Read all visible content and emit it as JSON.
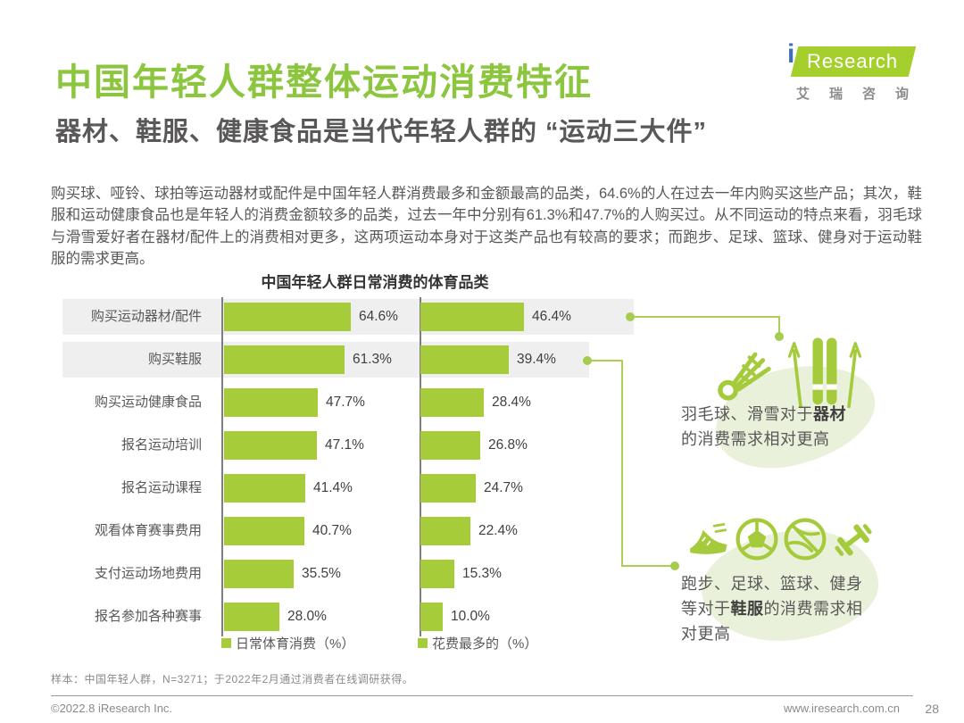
{
  "page": {
    "title": "中国年轻人群整体运动消费特征",
    "subtitle": "器材、鞋服、健康食品是当代年轻人群的 “运动三大件”",
    "body": "购买球、哑铃、球拍等运动器材或配件是中国年轻人群消费最多和金额最高的品类，64.6%的人在过去一年内购买这些产品；其次，鞋服和运动健康食品也是年轻人的消费金额较多的品类，过去一年中分别有61.3%和47.7%的人购买过。从不同运动的特点来看，羽毛球与滑雪爱好者在器材/配件上的消费相对更多，这两项运动本身对于这类产品也有较高的要求；而跑步、足球、篮球、健身对于运动鞋服的需求更高。"
  },
  "logo": {
    "brand_i": "i",
    "brand": "Research",
    "cn": "艾瑞咨询"
  },
  "chart_data": {
    "type": "bar",
    "orientation": "horizontal",
    "title": "中国年轻人群日常消费的体育品类",
    "categories": [
      "购买运动器材/配件",
      "购买鞋服",
      "购买运动健康食品",
      "报名运动培训",
      "报名运动课程",
      "观看体育赛事费用",
      "支付运动场地费用",
      "报名参加各种赛事"
    ],
    "series": [
      {
        "name": "日常体育消费（%）",
        "values": [
          64.6,
          61.3,
          47.7,
          47.1,
          41.4,
          40.7,
          35.5,
          28.0
        ]
      },
      {
        "name": "花费最多的（%）",
        "values": [
          46.4,
          39.4,
          28.4,
          26.8,
          24.7,
          22.4,
          15.3,
          10.0
        ]
      }
    ],
    "value_suffix": "%",
    "highlighted_rows": [
      0,
      1
    ],
    "bar_color": "#A6CC3A",
    "band_color": "#EFEFEF",
    "legend_position": "bottom"
  },
  "annotations": [
    {
      "icons": [
        "shuttlecock-icon",
        "skis-icon"
      ],
      "lines": [
        {
          "pre": "羽毛球、滑雪对于",
          "bold": "器材",
          "post": ""
        },
        {
          "pre": "的消费需求相对更高",
          "bold": "",
          "post": ""
        }
      ]
    },
    {
      "icons": [
        "running-shoe-icon",
        "soccer-ball-icon",
        "basketball-icon",
        "dumbbell-icon"
      ],
      "lines": [
        {
          "pre": "跑步、足球、篮球、健身",
          "bold": "",
          "post": ""
        },
        {
          "pre": "等对于",
          "bold": "鞋服",
          "post": "的消费需求相"
        },
        {
          "pre": "对更高",
          "bold": "",
          "post": ""
        }
      ]
    }
  ],
  "footnote": "样本：中国年轻人群，N=3271；于2022年2月通过消费者在线调研获得。",
  "footer": {
    "left": "©2022.8 iResearch Inc.",
    "url": "www.iresearch.com.cn",
    "page": "28"
  },
  "colors": {
    "title_green": "#8CC63F",
    "bar_green": "#A6CC3A",
    "connector_green": "#ABCF55",
    "blob_green": "#E9F1DA",
    "logo_green": "#A4CF2C",
    "logo_blue": "#3E6FB5",
    "text_gray": "#595757",
    "band_gray": "#EFEFEF"
  }
}
